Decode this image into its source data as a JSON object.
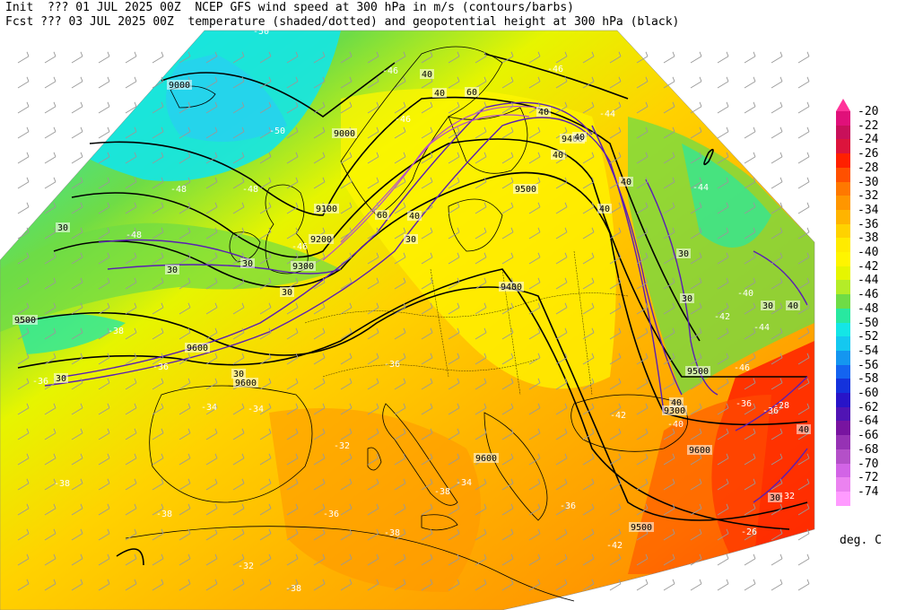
{
  "header": {
    "line1_left": "Init  ??? 01 JUL 2025 00Z",
    "line1_right": "NCEP GFS wind speed at 300 hPa in m/s (contours/barbs)",
    "line2_left": "Fcst ??? 03 JUL 2025 00Z",
    "line2_right": "temperature (shaded/dotted) and geopotential height at 300 hPa (black)"
  },
  "colorbar": {
    "units": "deg. C",
    "levels": [
      "-20",
      "-22",
      "-24",
      "-26",
      "-28",
      "-30",
      "-32",
      "-34",
      "-36",
      "-38",
      "-40",
      "-42",
      "-44",
      "-46",
      "-48",
      "-50",
      "-52",
      "-54",
      "-56",
      "-58",
      "-60",
      "-62",
      "-64",
      "-66",
      "-68",
      "-70",
      "-72",
      "-74"
    ],
    "colors": [
      "#e0107a",
      "#c8105a",
      "#dc143c",
      "#ff2000",
      "#ff5000",
      "#ff7800",
      "#ff9600",
      "#ffb400",
      "#ffd200",
      "#ffeb00",
      "#fff500",
      "#e6f500",
      "#b4ec28",
      "#6edc46",
      "#28e8a0",
      "#14e6e6",
      "#14c8f0",
      "#1496f0",
      "#1464f0",
      "#1432dc",
      "#2814c8",
      "#5014b4",
      "#7814a0",
      "#9632b4",
      "#b450c8",
      "#d264e6",
      "#eb82f0",
      "#ff9bff"
    ],
    "top_arrow_color": "#ff3399"
  },
  "map": {
    "height_labels": [
      "9000",
      "9000",
      "9100",
      "9200",
      "9300",
      "9400",
      "9500",
      "9500",
      "9600",
      "9600",
      "9400",
      "9300",
      "9500",
      "9600",
      "9500",
      "9600"
    ],
    "wind_labels": [
      "30",
      "30",
      "30",
      "30",
      "30",
      "40",
      "40",
      "60",
      "60",
      "40",
      "30",
      "40",
      "40",
      "40",
      "40",
      "30",
      "30",
      "40",
      "30",
      "40",
      "30",
      "40",
      "40",
      "30"
    ],
    "temp_labels": [
      "-50",
      "-46",
      "-46",
      "-50",
      "-48",
      "-48",
      "-48",
      "-46",
      "-46",
      "-44",
      "-44",
      "-42",
      "-40",
      "-38",
      "-36",
      "-36",
      "-36",
      "-34",
      "-34",
      "-32",
      "-34",
      "-38",
      "-38",
      "-38",
      "-36",
      "-38",
      "-42",
      "-46",
      "-44",
      "-42",
      "-40",
      "-36",
      "-36",
      "-32",
      "-26",
      "-28",
      "-36",
      "-32",
      "-38"
    ]
  }
}
